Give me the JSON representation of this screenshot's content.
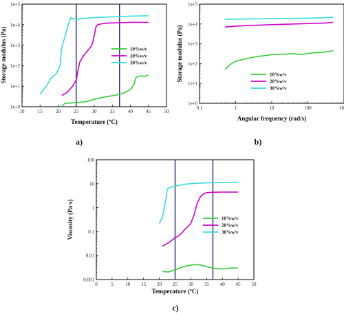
{
  "chart_data": [
    {
      "panel": "a)",
      "type": "line",
      "xlabel": "Temperature (ºC)",
      "ylabel": "Storage modulus (Pa)",
      "xlim": [
        10,
        50
      ],
      "ylim": [
        1,
        100000
      ],
      "y_scale": "log",
      "xticks": [
        "10",
        "15",
        "20",
        "25",
        "30",
        "35",
        "40",
        "45",
        "50"
      ],
      "yticks": [
        "1e+0",
        "1e+1",
        "1e+2",
        "1e+3",
        "1e+4",
        "1e+5"
      ],
      "legend_position": "center-right",
      "vlines": [
        25,
        37
      ],
      "vline_color": "#1e2a78",
      "series": [
        {
          "name": "10%w/v",
          "color": "#33cc33",
          "points": [
            [
              21,
              1.1
            ],
            [
              22,
              1.5
            ],
            [
              23,
              1.5
            ],
            [
              25,
              1.6
            ],
            [
              27,
              1.7
            ],
            [
              28,
              1.8
            ],
            [
              30,
              2.3
            ],
            [
              32,
              2.8
            ],
            [
              34,
              3.2
            ],
            [
              36,
              3.7
            ],
            [
              38,
              4.5
            ],
            [
              39,
              5.5
            ],
            [
              40,
              7
            ],
            [
              41,
              12
            ],
            [
              41.5,
              25
            ],
            [
              42,
              30
            ],
            [
              43,
              32
            ],
            [
              44,
              30
            ],
            [
              45,
              35
            ]
          ]
        },
        {
          "name": "20%w/v",
          "color": "#cc00cc",
          "points": [
            [
              21,
              3.5
            ],
            [
              22.5,
              5
            ],
            [
              24,
              10
            ],
            [
              25,
              20
            ],
            [
              25.5,
              60
            ],
            [
              26,
              150
            ],
            [
              27,
              300
            ],
            [
              28,
              500
            ],
            [
              29,
              800
            ],
            [
              29.5,
              1200
            ],
            [
              30,
              3000
            ],
            [
              30.5,
              8000
            ],
            [
              31,
              10000
            ],
            [
              32,
              11000
            ],
            [
              34,
              12000
            ],
            [
              37,
              12500
            ],
            [
              40,
              13000
            ],
            [
              45,
              13000
            ]
          ]
        },
        {
          "name": "30%w/v",
          "color": "#33dddd",
          "points": [
            [
              15,
              4
            ],
            [
              17,
              12
            ],
            [
              18,
              25
            ],
            [
              19.5,
              40
            ],
            [
              20.5,
              100
            ],
            [
              21,
              800
            ],
            [
              22,
              3000
            ],
            [
              22.8,
              10000
            ],
            [
              23.5,
              22000
            ],
            [
              24,
              20000
            ],
            [
              25,
              18000
            ],
            [
              27,
              20000
            ],
            [
              30,
              22000
            ],
            [
              35,
              24000
            ],
            [
              40,
              26000
            ],
            [
              45,
              27000
            ]
          ]
        }
      ]
    },
    {
      "panel": "b)",
      "type": "line",
      "xlabel": "Angular frequency (rad/s)",
      "ylabel": "Storage modulus (Pa)",
      "xlim": [
        0.1,
        1000
      ],
      "x_scale": "log",
      "ylim": [
        1,
        100000
      ],
      "y_scale": "log",
      "xticks": [
        "0.1",
        "1",
        "10",
        "100",
        "1000"
      ],
      "yticks": [
        "1e+0",
        "1e+1",
        "1e+2",
        "1e+3",
        "1e+4",
        "1e+5"
      ],
      "legend_position": "lower-left",
      "series": [
        {
          "name": "10%w/v",
          "color": "#33cc33",
          "points": [
            [
              0.5,
              50
            ],
            [
              0.7,
              90
            ],
            [
              1,
              130
            ],
            [
              2,
              180
            ],
            [
              4,
              230
            ],
            [
              10,
              280
            ],
            [
              20,
              300
            ],
            [
              40,
              320
            ],
            [
              70,
              290
            ],
            [
              100,
              330
            ],
            [
              150,
              350
            ],
            [
              300,
              380
            ],
            [
              500,
              450
            ]
          ]
        },
        {
          "name": "20%w/v",
          "color": "#cc00cc",
          "points": [
            [
              0.5,
              7000
            ],
            [
              1,
              7800
            ],
            [
              3,
              8500
            ],
            [
              10,
              9200
            ],
            [
              30,
              9800
            ],
            [
              100,
              10500
            ],
            [
              300,
              11200
            ],
            [
              500,
              12000
            ]
          ]
        },
        {
          "name": "30%w/v",
          "color": "#33dddd",
          "points": [
            [
              0.5,
              17000
            ],
            [
              1,
              17500
            ],
            [
              3,
              18000
            ],
            [
              10,
              18500
            ],
            [
              30,
              19000
            ],
            [
              100,
              19500
            ],
            [
              300,
              20500
            ],
            [
              500,
              22000
            ]
          ]
        }
      ]
    },
    {
      "panel": "c)",
      "type": "line",
      "xlabel": "Temperature (ºC)",
      "ylabel": "Viscosity (Pa·s)",
      "xlim": [
        0,
        50
      ],
      "ylim": [
        0.001,
        100
      ],
      "y_scale": "log",
      "xticks": [
        "0",
        "5",
        "10",
        "15",
        "20",
        "25",
        "30",
        "35",
        "40",
        "45",
        "50"
      ],
      "yticks": [
        "0.001",
        "0.01",
        "0.1",
        "1",
        "10",
        "100"
      ],
      "legend_position": "lower-right",
      "vlines": [
        25,
        37
      ],
      "vline_color": "#1e2a78",
      "series": [
        {
          "name": "10%w/v",
          "color": "#33cc33",
          "points": [
            [
              21,
              0.0022
            ],
            [
              22,
              0.0021
            ],
            [
              23,
              0.0021
            ],
            [
              25,
              0.0025
            ],
            [
              27,
              0.0033
            ],
            [
              29,
              0.0038
            ],
            [
              31,
              0.0042
            ],
            [
              33,
              0.0041
            ],
            [
              35,
              0.0035
            ],
            [
              37,
              0.003
            ],
            [
              39,
              0.0028
            ],
            [
              41,
              0.0028
            ],
            [
              43,
              0.0031
            ],
            [
              45,
              0.003
            ]
          ]
        },
        {
          "name": "20%w/v",
          "color": "#cc00cc",
          "points": [
            [
              21,
              0.025
            ],
            [
              23,
              0.035
            ],
            [
              25,
              0.055
            ],
            [
              26,
              0.065
            ],
            [
              27,
              0.085
            ],
            [
              28,
              0.12
            ],
            [
              29,
              0.16
            ],
            [
              30,
              0.22
            ],
            [
              31,
              0.5
            ],
            [
              32,
              1.5
            ],
            [
              33,
              2.8
            ],
            [
              34,
              3.8
            ],
            [
              35,
              4.2
            ],
            [
              37,
              4.4
            ],
            [
              40,
              4.5
            ],
            [
              43,
              4.5
            ],
            [
              45,
              4.5
            ]
          ]
        },
        {
          "name": "30%w/v",
          "color": "#33dddd",
          "points": [
            [
              20,
              0.22
            ],
            [
              21,
              0.4
            ],
            [
              22,
              2
            ],
            [
              22.5,
              6
            ],
            [
              24,
              7.5
            ],
            [
              26,
              8.5
            ],
            [
              28,
              9.5
            ],
            [
              32,
              10.5
            ],
            [
              36,
              11
            ],
            [
              40,
              11.3
            ],
            [
              45,
              11.5
            ]
          ]
        }
      ]
    }
  ]
}
